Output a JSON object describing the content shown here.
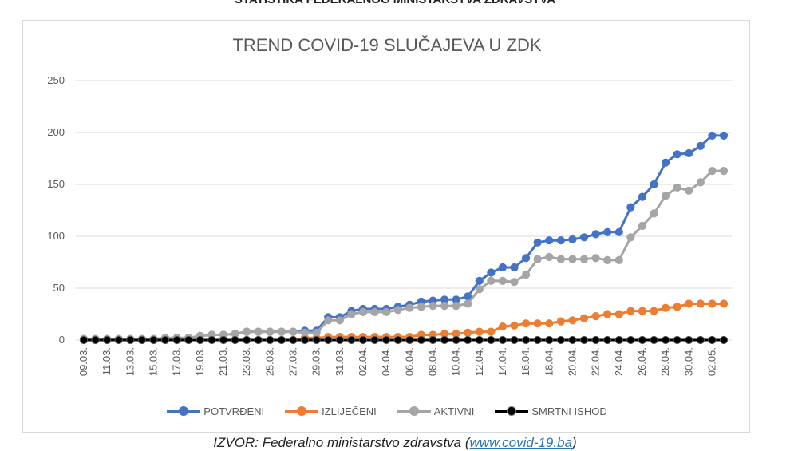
{
  "header_text": "STATISTIKA FEDERALNOG MINISTARSTVA ZDRAVSTVA",
  "caption": {
    "prefix": "IZVOR: Federalno ministarstvo zdravstva (",
    "link": "www.covid-19.ba",
    "suffix": ")"
  },
  "colors": {
    "potvrdeni": "#4472c4",
    "izlijeceni": "#ed7d31",
    "aktivni": "#a5a5a5",
    "smrtni": "#000000",
    "grid": "#d9d9d9",
    "text": "#595959"
  },
  "chart_data": {
    "type": "line",
    "title": "TREND COVID-19 SLUČAJEVA U ZDK",
    "xlabel": "",
    "ylabel": "",
    "ylim": [
      0,
      250
    ],
    "yticks": [
      "0",
      "50",
      "100",
      "150",
      "200",
      "250"
    ],
    "grid": true,
    "legend_position": "bottom",
    "categories": [
      "09.03.",
      "10.03.",
      "11.03.",
      "12.03.",
      "13.03.",
      "14.03.",
      "15.03.",
      "16.03.",
      "17.03.",
      "18.03.",
      "19.03.",
      "20.03.",
      "21.03.",
      "22.03.",
      "23.03.",
      "24.03.",
      "25.03.",
      "26.03.",
      "27.03.",
      "28.03.",
      "29.03.",
      "30.03.",
      "31.03.",
      "01.04.",
      "02.04.",
      "03.04.",
      "04.04.",
      "05.04.",
      "06.04.",
      "07.04.",
      "08.04.",
      "09.04.",
      "10.04.",
      "11.04.",
      "12.04.",
      "13.04.",
      "14.04.",
      "15.04.",
      "16.04.",
      "17.04.",
      "18.04.",
      "19.04.",
      "20.04.",
      "21.04.",
      "22.04.",
      "23.04.",
      "24.04.",
      "25.04.",
      "26.04.",
      "27.04.",
      "28.04.",
      "29.04.",
      "30.04.",
      "01.05.",
      "02.05.",
      "03.05."
    ],
    "x_tick_labels": [
      "09.03.",
      "11.03.",
      "13.03.",
      "15.03.",
      "17.03.",
      "19.03.",
      "21.03.",
      "23.03.",
      "25.03.",
      "27.03.",
      "29.03.",
      "31.03.",
      "02.04.",
      "04.04.",
      "06.04.",
      "08.04.",
      "10.04.",
      "12.04.",
      "14.04.",
      "16.04.",
      "18.04.",
      "20.04.",
      "22.04.",
      "24.04.",
      "26.04.",
      "28.04.",
      "30.04.",
      "02.05."
    ],
    "series": [
      {
        "name": "POTVRĐENI",
        "values": [
          1,
          1,
          1,
          1,
          1,
          1,
          1,
          2,
          2,
          2,
          4,
          5,
          5,
          6,
          8,
          8,
          8,
          8,
          8,
          9,
          9,
          22,
          22,
          28,
          30,
          30,
          30,
          32,
          34,
          37,
          38,
          39,
          39,
          42,
          57,
          65,
          70,
          70,
          79,
          94,
          96,
          96,
          97,
          99,
          102,
          104,
          104,
          128,
          138,
          150,
          171,
          179,
          180,
          187,
          197,
          197
        ]
      },
      {
        "name": "IZLIJEČENI",
        "values": [
          0,
          0,
          0,
          0,
          0,
          0,
          0,
          0,
          0,
          0,
          0,
          0,
          0,
          0,
          0,
          0,
          0,
          0,
          0,
          2,
          2,
          3,
          3,
          3,
          3,
          3,
          3,
          3,
          3,
          5,
          5,
          6,
          6,
          7,
          8,
          8,
          13,
          14,
          16,
          16,
          16,
          18,
          19,
          21,
          23,
          25,
          25,
          28,
          28,
          28,
          31,
          32,
          35,
          35,
          35,
          35
        ]
      },
      {
        "name": "AKTIVNI",
        "values": [
          1,
          1,
          1,
          1,
          1,
          1,
          1,
          2,
          2,
          2,
          4,
          5,
          5,
          6,
          8,
          8,
          8,
          8,
          8,
          7,
          7,
          19,
          19,
          25,
          27,
          27,
          27,
          29,
          31,
          32,
          33,
          33,
          33,
          35,
          49,
          57,
          57,
          56,
          63,
          78,
          80,
          78,
          78,
          78,
          79,
          77,
          77,
          99,
          110,
          122,
          139,
          147,
          144,
          152,
          163,
          163
        ]
      },
      {
        "name": "SMRTNI ISHOD",
        "values": [
          0,
          0,
          0,
          0,
          0,
          0,
          0,
          0,
          0,
          0,
          0,
          0,
          0,
          0,
          0,
          0,
          0,
          0,
          0,
          0,
          0,
          0,
          0,
          0,
          0,
          0,
          0,
          0,
          0,
          0,
          0,
          0,
          0,
          0,
          0,
          0,
          0,
          0,
          0,
          0,
          0,
          0,
          0,
          0,
          0,
          0,
          0,
          0,
          0,
          0,
          0,
          0,
          0,
          0,
          0,
          0
        ]
      }
    ]
  }
}
